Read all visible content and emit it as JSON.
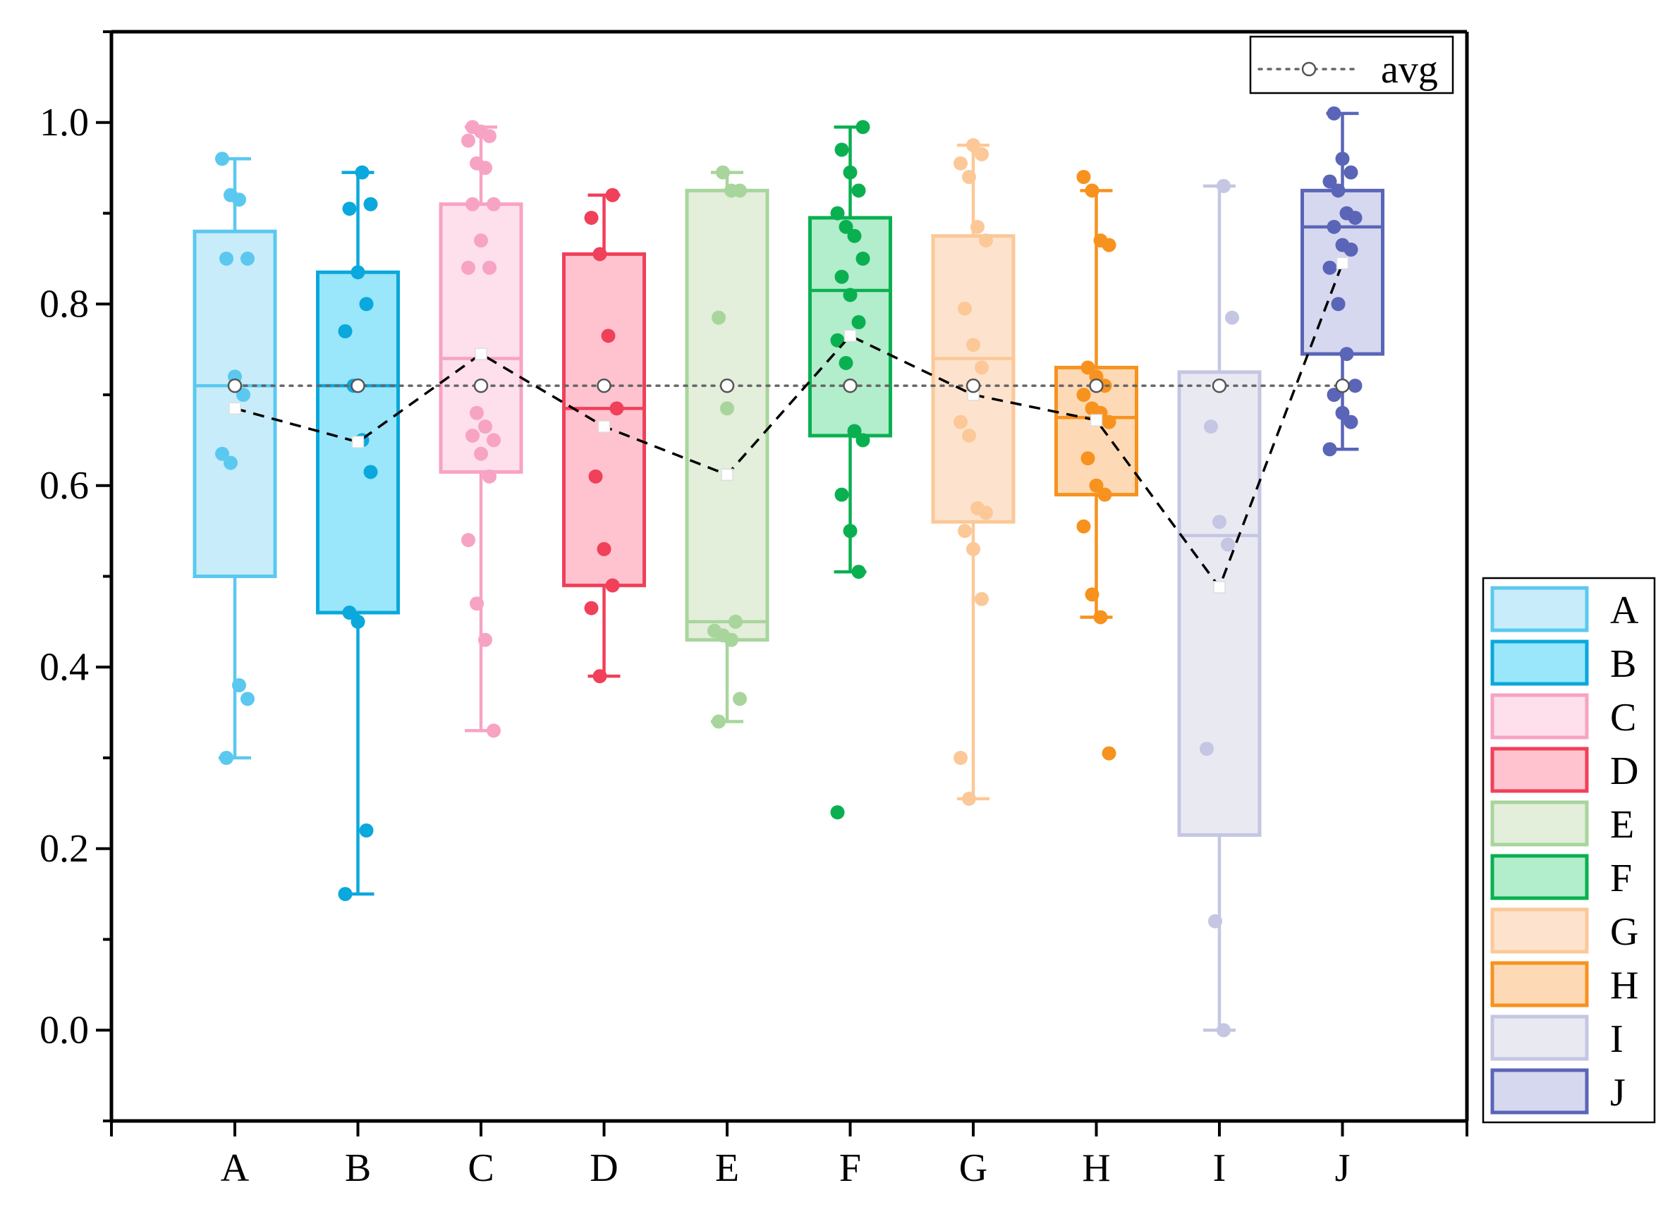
{
  "chart_data": {
    "type": "box",
    "title": "",
    "xlabel": "",
    "ylabel": "",
    "ylim": [
      -0.1,
      1.1
    ],
    "yticks": [
      0.0,
      0.2,
      0.4,
      0.6,
      0.8,
      1.0
    ],
    "ytick_labels": [
      "0.0",
      "0.2",
      "0.4",
      "0.6",
      "0.8",
      "1.0"
    ],
    "categories": [
      "A",
      "B",
      "C",
      "D",
      "E",
      "F",
      "G",
      "H",
      "I",
      "J"
    ],
    "overall_avg": 0.71,
    "avg_legend_label": "avg",
    "legend_position": "right",
    "series": [
      {
        "name": "A",
        "color": "#5bc8ef",
        "fill": "#c8ecfa",
        "fill_opacity": 1,
        "whisker_low": 0.3,
        "q1": 0.5,
        "median": 0.71,
        "q3": 0.88,
        "whisker_high": 0.96,
        "mean": 0.685,
        "points": [
          0.96,
          0.92,
          0.915,
          0.85,
          0.85,
          0.72,
          0.7,
          0.635,
          0.625,
          0.38,
          0.365,
          0.3
        ]
      },
      {
        "name": "B",
        "color": "#0aa8dc",
        "fill": "#9ae6fa",
        "fill_opacity": 1,
        "whisker_low": 0.15,
        "q1": 0.46,
        "median": 0.71,
        "q3": 0.835,
        "whisker_high": 0.945,
        "mean": 0.648,
        "points": [
          0.945,
          0.91,
          0.905,
          0.835,
          0.8,
          0.77,
          0.71,
          0.65,
          0.615,
          0.46,
          0.45,
          0.22,
          0.15
        ]
      },
      {
        "name": "C",
        "color": "#f7a3c4",
        "fill": "#fde0eb",
        "fill_opacity": 1,
        "whisker_low": 0.33,
        "q1": 0.615,
        "median": 0.74,
        "q3": 0.91,
        "whisker_high": 0.995,
        "mean": 0.745,
        "points": [
          0.995,
          0.99,
          0.985,
          0.98,
          0.955,
          0.95,
          0.91,
          0.91,
          0.87,
          0.84,
          0.84,
          0.68,
          0.665,
          0.65,
          0.655,
          0.635,
          0.61,
          0.54,
          0.47,
          0.43,
          0.33
        ]
      },
      {
        "name": "D",
        "color": "#f0405a",
        "fill": "#ffc3cf",
        "fill_opacity": 1,
        "whisker_low": 0.39,
        "q1": 0.49,
        "median": 0.685,
        "q3": 0.855,
        "whisker_high": 0.92,
        "mean": 0.665,
        "points": [
          0.92,
          0.895,
          0.855,
          0.765,
          0.685,
          0.61,
          0.53,
          0.49,
          0.465,
          0.39
        ]
      },
      {
        "name": "E",
        "color": "#a8d59c",
        "fill": "#e3eedb",
        "fill_opacity": 1,
        "whisker_low": 0.34,
        "q1": 0.43,
        "median": 0.45,
        "q3": 0.925,
        "whisker_high": 0.945,
        "mean": 0.612,
        "points": [
          0.945,
          0.925,
          0.925,
          0.785,
          0.685,
          0.45,
          0.44,
          0.435,
          0.43,
          0.365,
          0.34
        ]
      },
      {
        "name": "F",
        "color": "#0ab050",
        "fill": "#b2edcc",
        "fill_opacity": 1,
        "whisker_low": 0.505,
        "q1": 0.655,
        "median": 0.815,
        "q3": 0.895,
        "whisker_high": 0.995,
        "mean": 0.765,
        "points": [
          0.995,
          0.97,
          0.945,
          0.925,
          0.9,
          0.885,
          0.875,
          0.85,
          0.83,
          0.81,
          0.78,
          0.76,
          0.735,
          0.66,
          0.65,
          0.59,
          0.55,
          0.505,
          0.24
        ]
      },
      {
        "name": "G",
        "color": "#fcc898",
        "fill": "#fde3cd",
        "fill_opacity": 1,
        "whisker_low": 0.255,
        "q1": 0.56,
        "median": 0.74,
        "q3": 0.875,
        "whisker_high": 0.975,
        "mean": 0.7,
        "points": [
          0.975,
          0.965,
          0.955,
          0.94,
          0.885,
          0.87,
          0.795,
          0.755,
          0.73,
          0.67,
          0.655,
          0.575,
          0.57,
          0.55,
          0.53,
          0.475,
          0.3,
          0.255
        ]
      },
      {
        "name": "H",
        "color": "#f7921e",
        "fill": "#fed9b5",
        "fill_opacity": 1,
        "whisker_low": 0.455,
        "q1": 0.59,
        "median": 0.675,
        "q3": 0.73,
        "whisker_high": 0.925,
        "mean": 0.672,
        "points": [
          0.94,
          0.925,
          0.87,
          0.865,
          0.73,
          0.72,
          0.71,
          0.7,
          0.685,
          0.68,
          0.67,
          0.63,
          0.6,
          0.59,
          0.555,
          0.48,
          0.455,
          0.305
        ]
      },
      {
        "name": "I",
        "color": "#c4c6e3",
        "fill": "#e9e9f2",
        "fill_opacity": 1,
        "whisker_low": 0.0,
        "q1": 0.215,
        "median": 0.545,
        "q3": 0.725,
        "whisker_high": 0.93,
        "mean": 0.488,
        "points": [
          0.93,
          0.785,
          0.665,
          0.56,
          0.535,
          0.31,
          0.12,
          0.0
        ]
      },
      {
        "name": "J",
        "color": "#5a65b8",
        "fill": "#d6d8ef",
        "fill_opacity": 1,
        "whisker_low": 0.64,
        "q1": 0.745,
        "median": 0.885,
        "q3": 0.925,
        "whisker_high": 1.01,
        "mean": 0.845,
        "points": [
          1.01,
          0.96,
          0.945,
          0.935,
          0.925,
          0.9,
          0.895,
          0.885,
          0.865,
          0.86,
          0.84,
          0.8,
          0.745,
          0.71,
          0.7,
          0.68,
          0.67,
          0.64
        ]
      }
    ]
  }
}
